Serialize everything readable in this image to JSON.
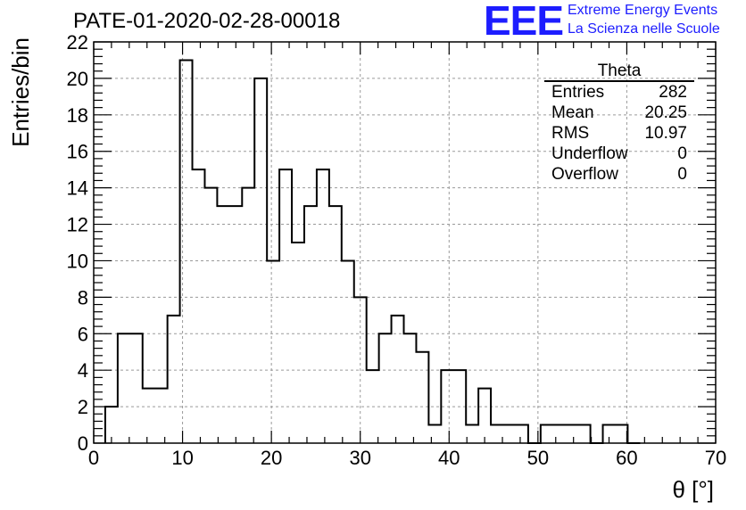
{
  "title": "PATE-01-2020-02-28-00018",
  "logo": {
    "mark": "EEE",
    "line1": "Extreme Energy Events",
    "line2": "La Scienza nelle Scuole"
  },
  "stats_box": {
    "name": "Theta",
    "rows": [
      {
        "label": "Entries",
        "value": "282"
      },
      {
        "label": "Mean",
        "value": "20.25"
      },
      {
        "label": "RMS",
        "value": "10.97"
      },
      {
        "label": "Underflow",
        "value": "0"
      },
      {
        "label": "Overflow",
        "value": "0"
      }
    ]
  },
  "colors": {
    "line": "#000000",
    "grid": "#9a9a9a",
    "logo": "#1d1dff"
  },
  "chart_data": {
    "type": "histogram",
    "xlabel": "θ [°]",
    "ylabel": "Entries/bin",
    "xlim": [
      0,
      70
    ],
    "ylim": [
      0,
      22
    ],
    "x_ticks": [
      0,
      10,
      20,
      30,
      40,
      50,
      60,
      70
    ],
    "y_ticks": [
      0,
      2,
      4,
      6,
      8,
      10,
      12,
      14,
      16,
      18,
      20,
      22
    ],
    "grid": true,
    "bin_width": 1.4,
    "bin_start": 1.3,
    "values": [
      2,
      6,
      6,
      3,
      3,
      7,
      21,
      15,
      14,
      13,
      13,
      14,
      20,
      10,
      15,
      11,
      13,
      15,
      13,
      10,
      8,
      4,
      6,
      7,
      6,
      5,
      1,
      4,
      4,
      1,
      3,
      1,
      1,
      1,
      0,
      1,
      1,
      1,
      1,
      0,
      1,
      1,
      0
    ]
  }
}
